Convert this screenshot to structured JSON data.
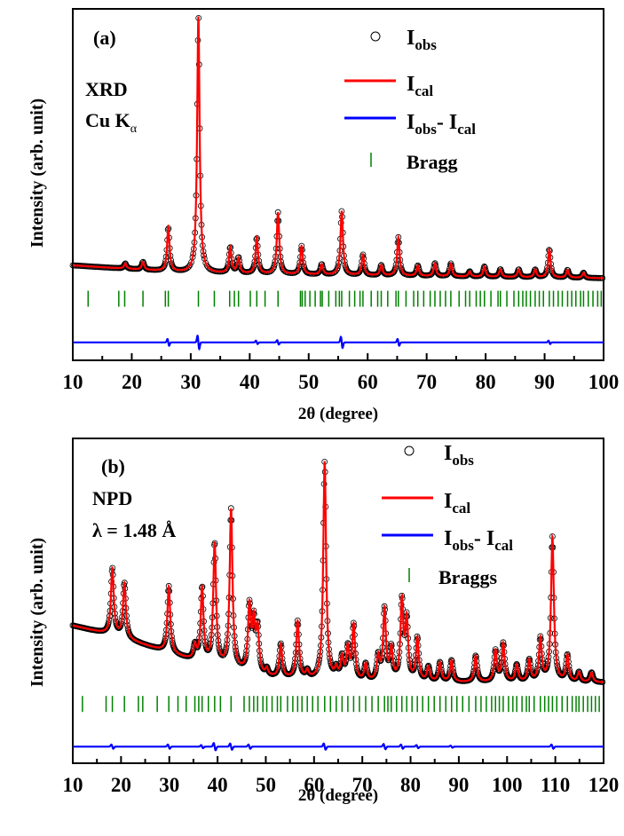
{
  "colors": {
    "obs": "#000000",
    "cal": "#ff0000",
    "diff": "#0000ff",
    "bragg": "#008000"
  },
  "chart_data": [
    {
      "type": "line",
      "panel_label": "(a)",
      "annotation": [
        "XRD",
        "Cu K",
        "α"
      ],
      "xlabel": "2θ (degree)",
      "ylabel": "Intensity (arb. unit)",
      "xlim": [
        10,
        100
      ],
      "ylim": [
        -0.32,
        1.05
      ],
      "xticks": [
        10,
        20,
        30,
        40,
        50,
        60,
        70,
        80,
        90,
        100
      ],
      "yticks_shown": false,
      "legend_position": "top-right",
      "series": [
        {
          "name": "I",
          "sub": "obs",
          "style": "open-circles"
        },
        {
          "name": "I",
          "sub": "cal",
          "style": "line"
        },
        {
          "name": "I",
          "sub": "obs",
          "mid": "- I",
          "sub2": "cal",
          "style": "line"
        },
        {
          "name": "Bragg",
          "style": "ticks"
        }
      ],
      "background": {
        "x": [
          10,
          30,
          60,
          100
        ],
        "y": [
          0.05,
          0.02,
          0.01,
          0.0
        ]
      },
      "peaks": [
        {
          "x": 18.9,
          "h": 0.02
        },
        {
          "x": 21.9,
          "h": 0.03
        },
        {
          "x": 26.2,
          "h": 0.17
        },
        {
          "x": 31.3,
          "h": 1.0
        },
        {
          "x": 36.7,
          "h": 0.1
        },
        {
          "x": 38.1,
          "h": 0.06
        },
        {
          "x": 41.2,
          "h": 0.14
        },
        {
          "x": 44.8,
          "h": 0.24
        },
        {
          "x": 48.8,
          "h": 0.11
        },
        {
          "x": 52.2,
          "h": 0.04
        },
        {
          "x": 55.6,
          "h": 0.25
        },
        {
          "x": 59.2,
          "h": 0.08
        },
        {
          "x": 62.3,
          "h": 0.04
        },
        {
          "x": 65.2,
          "h": 0.15
        },
        {
          "x": 68.5,
          "h": 0.04
        },
        {
          "x": 71.4,
          "h": 0.05
        },
        {
          "x": 74.1,
          "h": 0.05
        },
        {
          "x": 77.3,
          "h": 0.02
        },
        {
          "x": 79.8,
          "h": 0.04
        },
        {
          "x": 82.5,
          "h": 0.03
        },
        {
          "x": 85.6,
          "h": 0.03
        },
        {
          "x": 88.4,
          "h": 0.03
        },
        {
          "x": 90.8,
          "h": 0.11
        },
        {
          "x": 93.9,
          "h": 0.03
        },
        {
          "x": 96.6,
          "h": 0.02
        }
      ],
      "peak_width": 0.25,
      "diff_offset": -0.25,
      "diff_features": [
        {
          "x": 26.2,
          "a": 0.03
        },
        {
          "x": 31.3,
          "a": 0.06
        },
        {
          "x": 41.2,
          "a": 0.015
        },
        {
          "x": 44.8,
          "a": 0.02
        },
        {
          "x": 55.6,
          "a": 0.05
        },
        {
          "x": 65.2,
          "a": 0.03
        },
        {
          "x": 90.8,
          "a": 0.015
        }
      ],
      "bragg_y": -0.08,
      "bragg_positions": [
        12.6,
        17.8,
        18.8,
        21.9,
        25.7,
        26.2,
        31.3,
        34.0,
        36.6,
        37.4,
        38.1,
        40.1,
        41.2,
        42.6,
        44.8,
        48.6,
        48.9,
        49.4,
        50.2,
        51.1,
        52.0,
        52.3,
        53.4,
        54.6,
        55.2,
        55.6,
        56.9,
        57.8,
        58.7,
        59.2,
        60.6,
        61.7,
        62.3,
        63.4,
        64.8,
        65.2,
        66.5,
        67.8,
        68.5,
        69.5,
        70.6,
        71.4,
        72.3,
        73.2,
        74.1,
        75.5,
        76.6,
        77.3,
        78.4,
        79.1,
        79.8,
        80.9,
        82.1,
        82.5,
        83.6,
        84.8,
        85.6,
        86.3,
        86.9,
        87.6,
        88.4,
        89.1,
        89.8,
        90.8,
        91.5,
        92.3,
        93.0,
        93.9,
        94.6,
        95.3,
        96.1,
        96.6,
        97.4,
        98.2,
        99.0,
        99.6
      ]
    },
    {
      "type": "line",
      "panel_label": "(b)",
      "annotation": [
        "NPD",
        "λ = 1.48 Å"
      ],
      "xlabel": "2θ (degree)",
      "ylabel": "Intensity (arb. unit)",
      "xlim": [
        10,
        120
      ],
      "ylim": [
        -0.32,
        1.05
      ],
      "xticks": [
        10,
        20,
        30,
        40,
        50,
        60,
        70,
        80,
        90,
        100,
        110,
        120
      ],
      "yticks_shown": false,
      "legend_position": "top-right",
      "series": [
        {
          "name": "I",
          "sub": "obs",
          "style": "open-circles"
        },
        {
          "name": "I",
          "sub": "cal",
          "style": "line"
        },
        {
          "name": "I",
          "sub": "obs",
          "mid": "- I",
          "sub2": "cal",
          "style": "line"
        },
        {
          "name": "Braggs",
          "style": "ticks"
        }
      ],
      "background": {
        "x": [
          10,
          20,
          35,
          50,
          70,
          100,
          120
        ],
        "y": [
          0.26,
          0.21,
          0.11,
          0.04,
          0.02,
          0.02,
          0.02
        ]
      },
      "peaks": [
        {
          "x": 18.2,
          "h": 0.28
        },
        {
          "x": 20.7,
          "h": 0.23
        },
        {
          "x": 29.9,
          "h": 0.28
        },
        {
          "x": 35.3,
          "h": 0.06
        },
        {
          "x": 36.8,
          "h": 0.31
        },
        {
          "x": 39.4,
          "h": 0.51
        },
        {
          "x": 42.8,
          "h": 0.67
        },
        {
          "x": 46.6,
          "h": 0.27
        },
        {
          "x": 47.5,
          "h": 0.2
        },
        {
          "x": 48.3,
          "h": 0.18
        },
        {
          "x": 50.2,
          "h": 0.03
        },
        {
          "x": 53.1,
          "h": 0.14
        },
        {
          "x": 56.6,
          "h": 0.24
        },
        {
          "x": 58.6,
          "h": 0.03
        },
        {
          "x": 62.2,
          "h": 0.92
        },
        {
          "x": 64.6,
          "h": 0.04
        },
        {
          "x": 65.8,
          "h": 0.09
        },
        {
          "x": 67.0,
          "h": 0.13
        },
        {
          "x": 68.2,
          "h": 0.23
        },
        {
          "x": 70.7,
          "h": 0.07
        },
        {
          "x": 73.3,
          "h": 0.1
        },
        {
          "x": 74.6,
          "h": 0.3
        },
        {
          "x": 76.0,
          "h": 0.13
        },
        {
          "x": 78.2,
          "h": 0.33
        },
        {
          "x": 79.2,
          "h": 0.25
        },
        {
          "x": 81.4,
          "h": 0.18
        },
        {
          "x": 83.7,
          "h": 0.06
        },
        {
          "x": 86.1,
          "h": 0.08
        },
        {
          "x": 88.5,
          "h": 0.09
        },
        {
          "x": 93.5,
          "h": 0.11
        },
        {
          "x": 97.6,
          "h": 0.13
        },
        {
          "x": 99.2,
          "h": 0.16
        },
        {
          "x": 102.0,
          "h": 0.07
        },
        {
          "x": 104.6,
          "h": 0.09
        },
        {
          "x": 106.9,
          "h": 0.18
        },
        {
          "x": 109.4,
          "h": 0.61
        },
        {
          "x": 112.5,
          "h": 0.11
        },
        {
          "x": 114.9,
          "h": 0.04
        },
        {
          "x": 117.5,
          "h": 0.04
        }
      ],
      "peak_width": 0.35,
      "diff_offset": -0.25,
      "diff_features": [
        {
          "x": 18.2,
          "a": 0.02
        },
        {
          "x": 29.9,
          "a": 0.02
        },
        {
          "x": 36.8,
          "a": 0.015
        },
        {
          "x": 39.4,
          "a": 0.035
        },
        {
          "x": 42.8,
          "a": 0.03
        },
        {
          "x": 46.6,
          "a": 0.02
        },
        {
          "x": 62.2,
          "a": 0.03
        },
        {
          "x": 74.6,
          "a": 0.025
        },
        {
          "x": 78.2,
          "a": 0.02
        },
        {
          "x": 81.4,
          "a": 0.015
        },
        {
          "x": 88.5,
          "a": 0.01
        },
        {
          "x": 109.4,
          "a": 0.02
        }
      ],
      "bragg_y": -0.07,
      "bragg_positions": [
        12.0,
        16.9,
        18.2,
        20.7,
        23.6,
        24.5,
        27.5,
        29.9,
        31.8,
        33.5,
        35.3,
        36.1,
        36.8,
        38.1,
        39.4,
        40.6,
        42.8,
        45.5,
        46.6,
        47.5,
        48.3,
        49.4,
        50.2,
        51.3,
        52.4,
        53.1,
        54.5,
        55.6,
        56.6,
        57.5,
        58.6,
        59.7,
        60.8,
        62.2,
        63.4,
        64.6,
        65.8,
        67.0,
        68.2,
        69.4,
        70.7,
        72.0,
        73.3,
        74.6,
        75.3,
        76.0,
        77.1,
        78.2,
        79.2,
        80.3,
        81.4,
        82.5,
        83.7,
        84.9,
        86.1,
        87.3,
        88.5,
        89.6,
        90.8,
        92.1,
        93.5,
        94.6,
        95.7,
        96.8,
        97.6,
        98.4,
        99.2,
        100.3,
        101.2,
        102.0,
        103.1,
        104.0,
        104.6,
        105.6,
        106.9,
        107.8,
        108.6,
        109.4,
        110.3,
        111.4,
        112.5,
        113.5,
        114.3,
        114.9,
        115.8,
        116.7,
        117.5,
        118.3,
        119.1
      ]
    }
  ]
}
